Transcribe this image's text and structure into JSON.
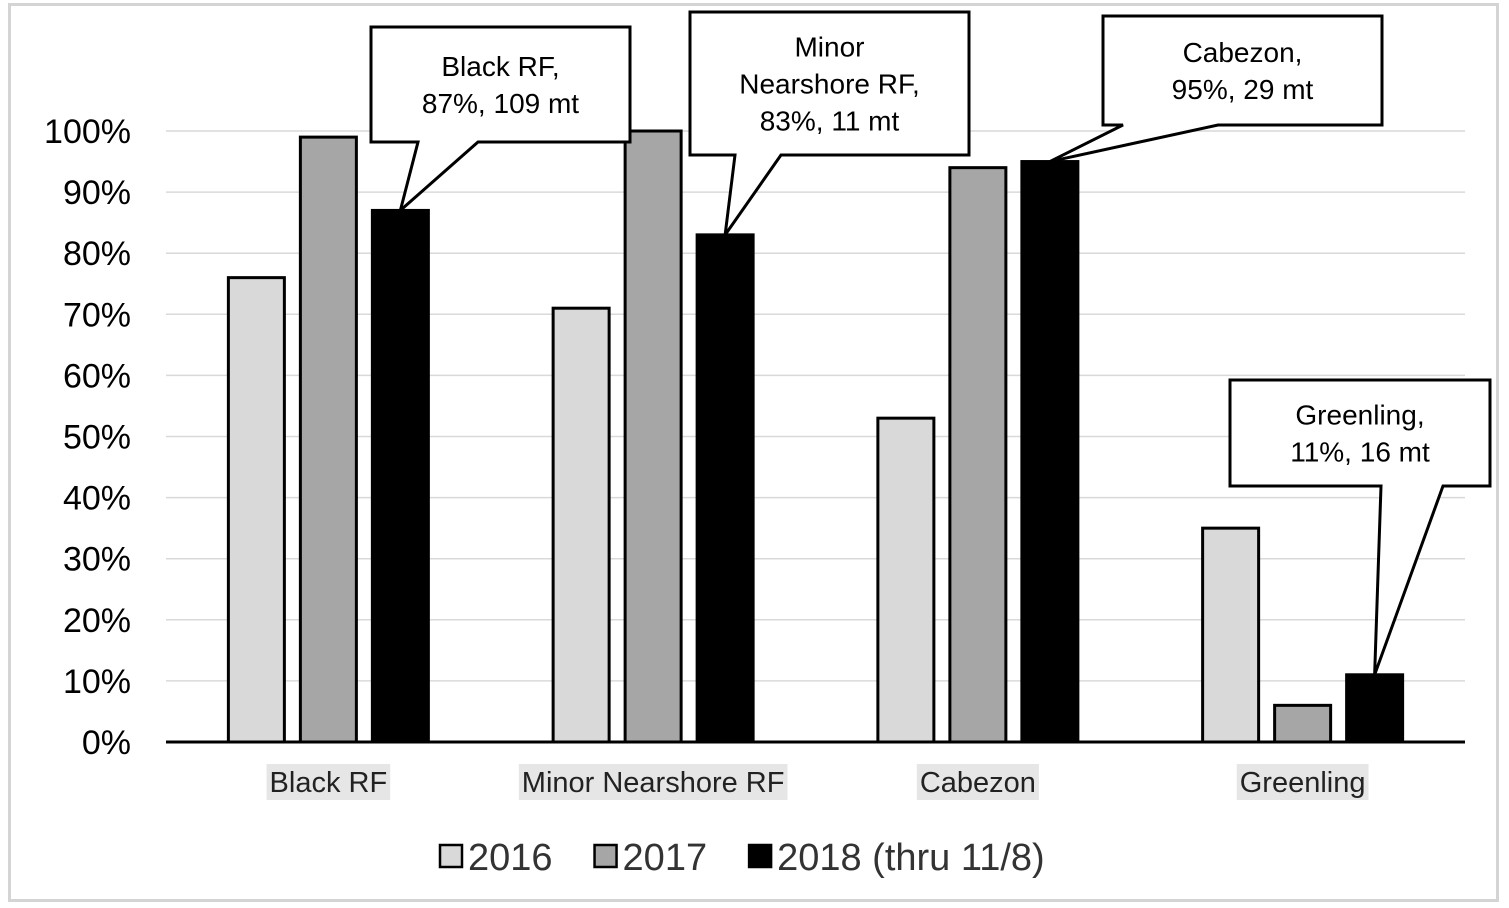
{
  "chart_data": {
    "type": "bar",
    "categories": [
      "Black RF",
      "Minor Nearshore RF",
      "Cabezon",
      "Greenling"
    ],
    "series": [
      {
        "name": "2016",
        "values": [
          76,
          71,
          53,
          35
        ],
        "color": "#d9d9d9"
      },
      {
        "name": "2017",
        "values": [
          99,
          100,
          94,
          6
        ],
        "color": "#a6a6a6"
      },
      {
        "name": "2018 (thru 11/8)",
        "values": [
          87,
          83,
          95,
          11
        ],
        "color": "#000000"
      }
    ],
    "ylim": [
      0,
      100
    ],
    "y_ticks": [
      "0%",
      "10%",
      "20%",
      "30%",
      "40%",
      "50%",
      "60%",
      "70%",
      "80%",
      "90%",
      "100%"
    ],
    "grid": true,
    "legend_position": "bottom",
    "annotations": [
      {
        "category": "Black RF",
        "series": "2018 (thru 11/8)",
        "lines": [
          "Black RF,",
          "87%, 109 mt"
        ]
      },
      {
        "category": "Minor Nearshore RF",
        "series": "2018 (thru 11/8)",
        "lines": [
          "Minor",
          "Nearshore RF,",
          "83%, 11 mt"
        ]
      },
      {
        "category": "Cabezon",
        "series": "2018 (thru 11/8)",
        "lines": [
          "Cabezon,",
          "95%, 29 mt"
        ]
      },
      {
        "category": "Greenling",
        "series": "2018 (thru 11/8)",
        "lines": [
          "Greenling,",
          "11%, 16 mt"
        ]
      }
    ]
  }
}
